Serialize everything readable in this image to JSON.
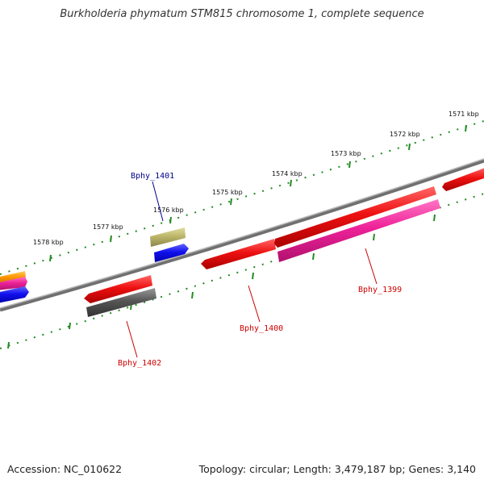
{
  "title": "Burkholderia phymatum STM815 chromosome 1, complete sequence",
  "footer": {
    "accession": "Accession: NC_010622",
    "topology": "Topology: circular; Length: 3,479,187 bp; Genes: 3,140"
  },
  "scale_labels": [
    "1571 kbp",
    "1572 kbp",
    "1573 kbp",
    "1574 kbp",
    "1575 kbp",
    "1576 kbp",
    "1577 kbp",
    "1578 kbp"
  ],
  "gene_labels": [
    {
      "name": "Bphy_1401",
      "color": "#00008b"
    },
    {
      "name": "Bphy_1399",
      "color": "#cc0000"
    },
    {
      "name": "Bphy_1400",
      "color": "#cc0000"
    },
    {
      "name": "Bphy_1402",
      "color": "#cc0000"
    }
  ],
  "colors": {
    "backbone": "#808080",
    "tick": "#228b22",
    "gene_red": "#ee1111",
    "gene_pink": "#ee2299",
    "gene_blue": "#1111ee",
    "gene_olive": "#bdb76b",
    "gene_gray": "#555555",
    "gene_orange": "#ff9900"
  }
}
